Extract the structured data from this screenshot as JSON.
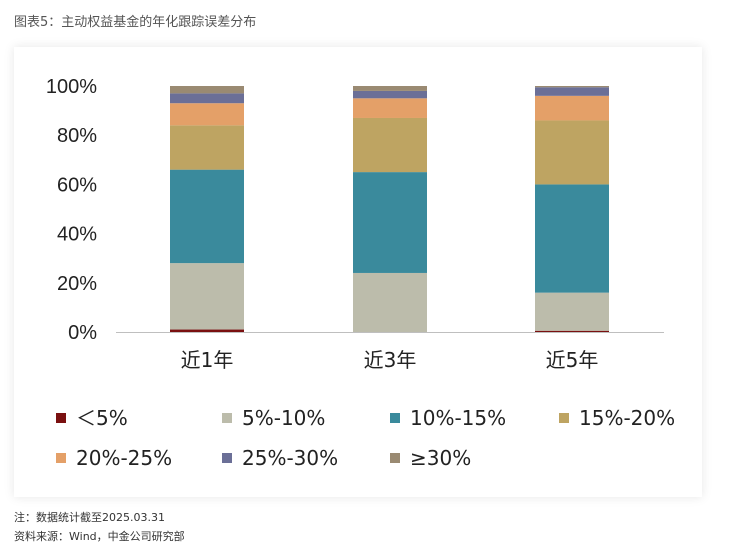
{
  "figure_title": "图表5：主动权益基金的年化跟踪误差分布",
  "notes": {
    "note": "注：数据统计截至2025.03.31",
    "source": "资料来源：Wind，中金公司研究部"
  },
  "chart_data": {
    "type": "bar",
    "stacked": true,
    "categories": [
      "近1年",
      "近3年",
      "近5年"
    ],
    "y_ticks": [
      "0%",
      "20%",
      "40%",
      "60%",
      "80%",
      "100%"
    ],
    "ylim": [
      0,
      100
    ],
    "grid": false,
    "legend_position": "bottom",
    "series": [
      {
        "name": "＜5%",
        "color": "#7a1010",
        "values": [
          1,
          0,
          0.5
        ]
      },
      {
        "name": "5%-10%",
        "color": "#bcbcab",
        "values": [
          27,
          24,
          15.5
        ]
      },
      {
        "name": "10%-15%",
        "color": "#3a8a9c",
        "values": [
          38,
          41,
          44
        ]
      },
      {
        "name": "15%-20%",
        "color": "#bea462",
        "values": [
          18,
          22,
          26
        ]
      },
      {
        "name": "20%-25%",
        "color": "#e4a068",
        "values": [
          9,
          8,
          10
        ]
      },
      {
        "name": "25%-30%",
        "color": "#6b6f97",
        "values": [
          4,
          3,
          3.5
        ]
      },
      {
        "name": "≥30%",
        "color": "#9a8a72",
        "values": [
          3,
          2,
          0.5
        ]
      }
    ]
  }
}
